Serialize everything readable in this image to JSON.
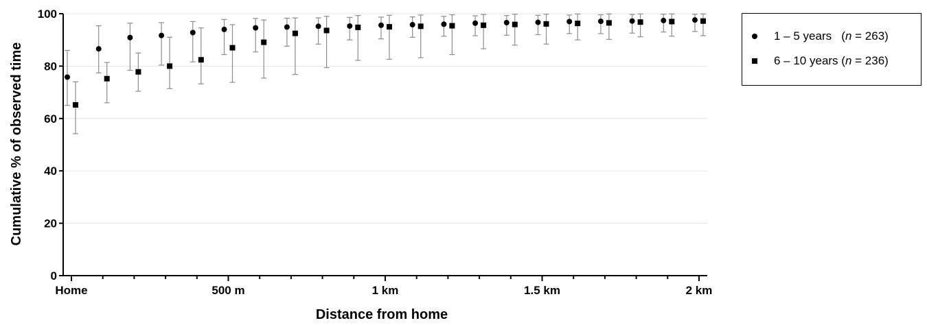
{
  "chart_data": {
    "type": "scatter",
    "xlabel": "Distance from home",
    "ylabel": "Cumulative % of observed time",
    "ylim": [
      0,
      100
    ],
    "xlim": [
      0,
      2000
    ],
    "xunit": "m",
    "x_tick_values": [
      0,
      500,
      1000,
      1500,
      2000
    ],
    "x_tick_labels": [
      "Home",
      "500 m",
      "1 km",
      "1.5 km",
      "2 km"
    ],
    "y_ticks": [
      0,
      20,
      40,
      60,
      80,
      100
    ],
    "grid": "horizontal",
    "legend_position": "right",
    "x": [
      0,
      100,
      200,
      300,
      400,
      500,
      600,
      700,
      800,
      900,
      1000,
      1100,
      1200,
      1300,
      1400,
      1500,
      1600,
      1700,
      1800,
      1900,
      2000
    ],
    "series": [
      {
        "name": "1 – 5 years",
        "n": "263",
        "marker": "circle",
        "values": [
          75.8,
          86.6,
          90.9,
          91.7,
          92.8,
          94.0,
          94.6,
          94.9,
          95.2,
          95.3,
          95.6,
          95.8,
          96.0,
          96.4,
          96.6,
          96.7,
          97.0,
          97.1,
          97.2,
          97.4,
          97.6
        ],
        "err_low": [
          65.0,
          77.4,
          78.4,
          80.4,
          81.6,
          84.4,
          85.4,
          87.6,
          88.4,
          90.0,
          90.4,
          91.0,
          91.4,
          91.6,
          91.8,
          92.0,
          92.4,
          92.4,
          92.6,
          93.0,
          93.2
        ],
        "err_high": [
          86.0,
          95.4,
          96.4,
          96.6,
          97.0,
          97.8,
          98.2,
          98.3,
          98.4,
          98.6,
          98.7,
          98.8,
          99.0,
          99.2,
          99.3,
          99.4,
          99.5,
          99.6,
          99.7,
          99.8,
          99.8
        ]
      },
      {
        "name": "6 – 10 years",
        "n": "236",
        "marker": "square",
        "values": [
          65.2,
          75.2,
          77.8,
          80.0,
          82.4,
          87.0,
          89.1,
          92.5,
          93.6,
          94.8,
          95.0,
          95.2,
          95.4,
          95.6,
          95.9,
          96.1,
          96.3,
          96.5,
          96.8,
          97.0,
          97.2
        ],
        "err_low": [
          54.2,
          66.0,
          70.4,
          71.4,
          73.2,
          73.8,
          75.4,
          76.8,
          79.4,
          82.2,
          82.6,
          83.2,
          84.4,
          86.6,
          88.0,
          88.4,
          90.0,
          90.2,
          91.2,
          91.4,
          91.6
        ],
        "err_high": [
          74.0,
          81.4,
          85.0,
          91.0,
          94.6,
          95.8,
          97.6,
          98.4,
          99.0,
          99.3,
          99.4,
          99.5,
          99.6,
          99.7,
          99.8,
          99.8,
          99.9,
          99.9,
          99.9,
          99.9,
          99.9
        ]
      }
    ]
  },
  "legend": {
    "items": [
      {
        "label": "1 – 5 years",
        "n_prefix": "(",
        "n_var": "n",
        "n_suffix": " = 263)"
      },
      {
        "label": "6 – 10 years",
        "n_prefix": "(",
        "n_var": "n",
        "n_suffix": " = 236)"
      }
    ]
  }
}
